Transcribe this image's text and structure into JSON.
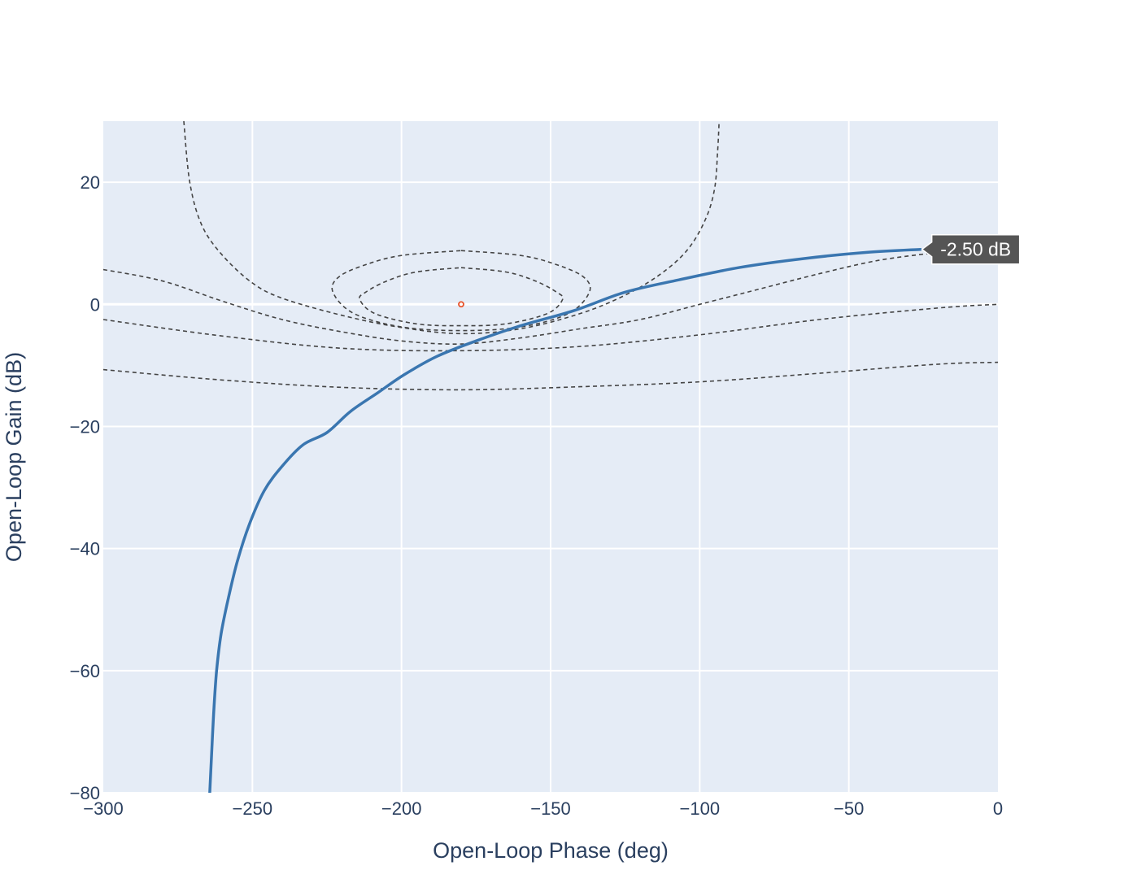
{
  "chart_data": {
    "type": "line",
    "title": "",
    "xlabel": "Open-Loop Phase (deg)",
    "ylabel": "Open-Loop Gain (dB)",
    "xlim": [
      -300,
      0
    ],
    "ylim": [
      -80,
      30
    ],
    "x_ticks": [
      -300,
      -250,
      -200,
      -150,
      -100,
      -50,
      0
    ],
    "x_tick_labels": [
      "−300",
      "−250",
      "−200",
      "−150",
      "−100",
      "−50",
      "0"
    ],
    "y_ticks": [
      -80,
      -60,
      -40,
      -20,
      0,
      20
    ],
    "y_tick_labels": [
      "−80",
      "−60",
      "−40",
      "−20",
      "0",
      "20"
    ],
    "grid": true,
    "legend": "none",
    "colors": {
      "plot_bg": "#e5ecf6",
      "grid": "#ffffff",
      "response": "#3a76b0",
      "contour": "#444444",
      "critical_point": "#e8532a",
      "hover_bg": "#555555"
    },
    "series": [
      {
        "role": "open-loop response",
        "style": "solid",
        "x": [
          -264.3,
          -263.8,
          -263,
          -262,
          -260.5,
          -258,
          -255,
          -251,
          -246,
          -240,
          -233,
          -225,
          -217,
          -208,
          -199,
          -188,
          -175,
          -160,
          -142,
          -125,
          -107,
          -87,
          -65,
          -44,
          -26
        ],
        "y": [
          -80,
          -75,
          -67,
          -60,
          -54,
          -48,
          -42,
          -36,
          -30.5,
          -26.5,
          -23,
          -21,
          -17.5,
          -14.5,
          -11.5,
          -8.5,
          -6,
          -3.5,
          -1,
          2,
          4,
          6,
          7.5,
          8.5,
          9
        ]
      }
    ],
    "contours": [
      {
        "role": "closed-loop contour",
        "style": "dashed",
        "x": [
          -180,
          -165,
          -155,
          -148,
          -146,
          -151,
          -165,
          -180,
          -195,
          -209,
          -214,
          -212,
          -205,
          -195,
          -180
        ],
        "y": [
          6,
          5.3,
          3.8,
          2,
          0.8,
          -1.5,
          -3.2,
          -3.5,
          -3.2,
          -1.5,
          0.8,
          2,
          3.8,
          5.3,
          6
        ]
      },
      {
        "role": "closed-loop contour",
        "style": "dashed",
        "x": [
          -180,
          -160,
          -148,
          -139,
          -137,
          -144,
          -160,
          -180,
          -200,
          -216,
          -223,
          -221,
          -212,
          -200,
          -180
        ],
        "y": [
          8.8,
          8,
          6.5,
          4.5,
          2,
          -1.5,
          -3.7,
          -4.3,
          -3.7,
          -1.5,
          2,
          4.5,
          6.5,
          8,
          8.8
        ]
      },
      {
        "role": "closed-loop contour",
        "style": "dashed",
        "x": [
          -273,
          -271,
          -267,
          -260,
          -250,
          -240,
          -220,
          -200,
          -180,
          -160,
          -140,
          -125,
          -113,
          -104,
          -98,
          -95,
          -94,
          -93.5
        ],
        "y": [
          30,
          20,
          13,
          8,
          3.5,
          1,
          -1.8,
          -3.8,
          -4.8,
          -4,
          -1.5,
          1.5,
          5,
          9,
          14,
          19,
          25,
          30
        ]
      },
      {
        "role": "closed-loop contour",
        "style": "dashed",
        "x": [
          -300,
          -280,
          -260,
          -240,
          -220,
          -200,
          -180,
          -160,
          -140,
          -120,
          -100,
          -80,
          -60,
          -40,
          -20,
          -10
        ],
        "y": [
          5.7,
          3.8,
          0.5,
          -2.5,
          -4.5,
          -6,
          -6.5,
          -5.5,
          -4,
          -2.5,
          0,
          2.5,
          5,
          7.2,
          8.5,
          9
        ]
      },
      {
        "role": "closed-loop contour",
        "style": "dashed",
        "x": [
          -300,
          -260,
          -220,
          -180,
          -140,
          -100,
          -60,
          -20,
          0
        ],
        "y": [
          -2.5,
          -5.2,
          -7.2,
          -7.6,
          -6.9,
          -5,
          -2.5,
          -0.6,
          0
        ]
      },
      {
        "role": "closed-loop contour",
        "style": "dashed",
        "x": [
          -300,
          -260,
          -220,
          -180,
          -140,
          -100,
          -60,
          -20,
          0
        ],
        "y": [
          -10.7,
          -12.4,
          -13.6,
          -14,
          -13.5,
          -12.7,
          -11.3,
          -9.8,
          -9.5
        ]
      }
    ],
    "critical_point": {
      "x": -180,
      "y": 0
    },
    "annotations": [
      {
        "text": "-2.50 dB",
        "x": -26,
        "y": 9
      }
    ]
  }
}
